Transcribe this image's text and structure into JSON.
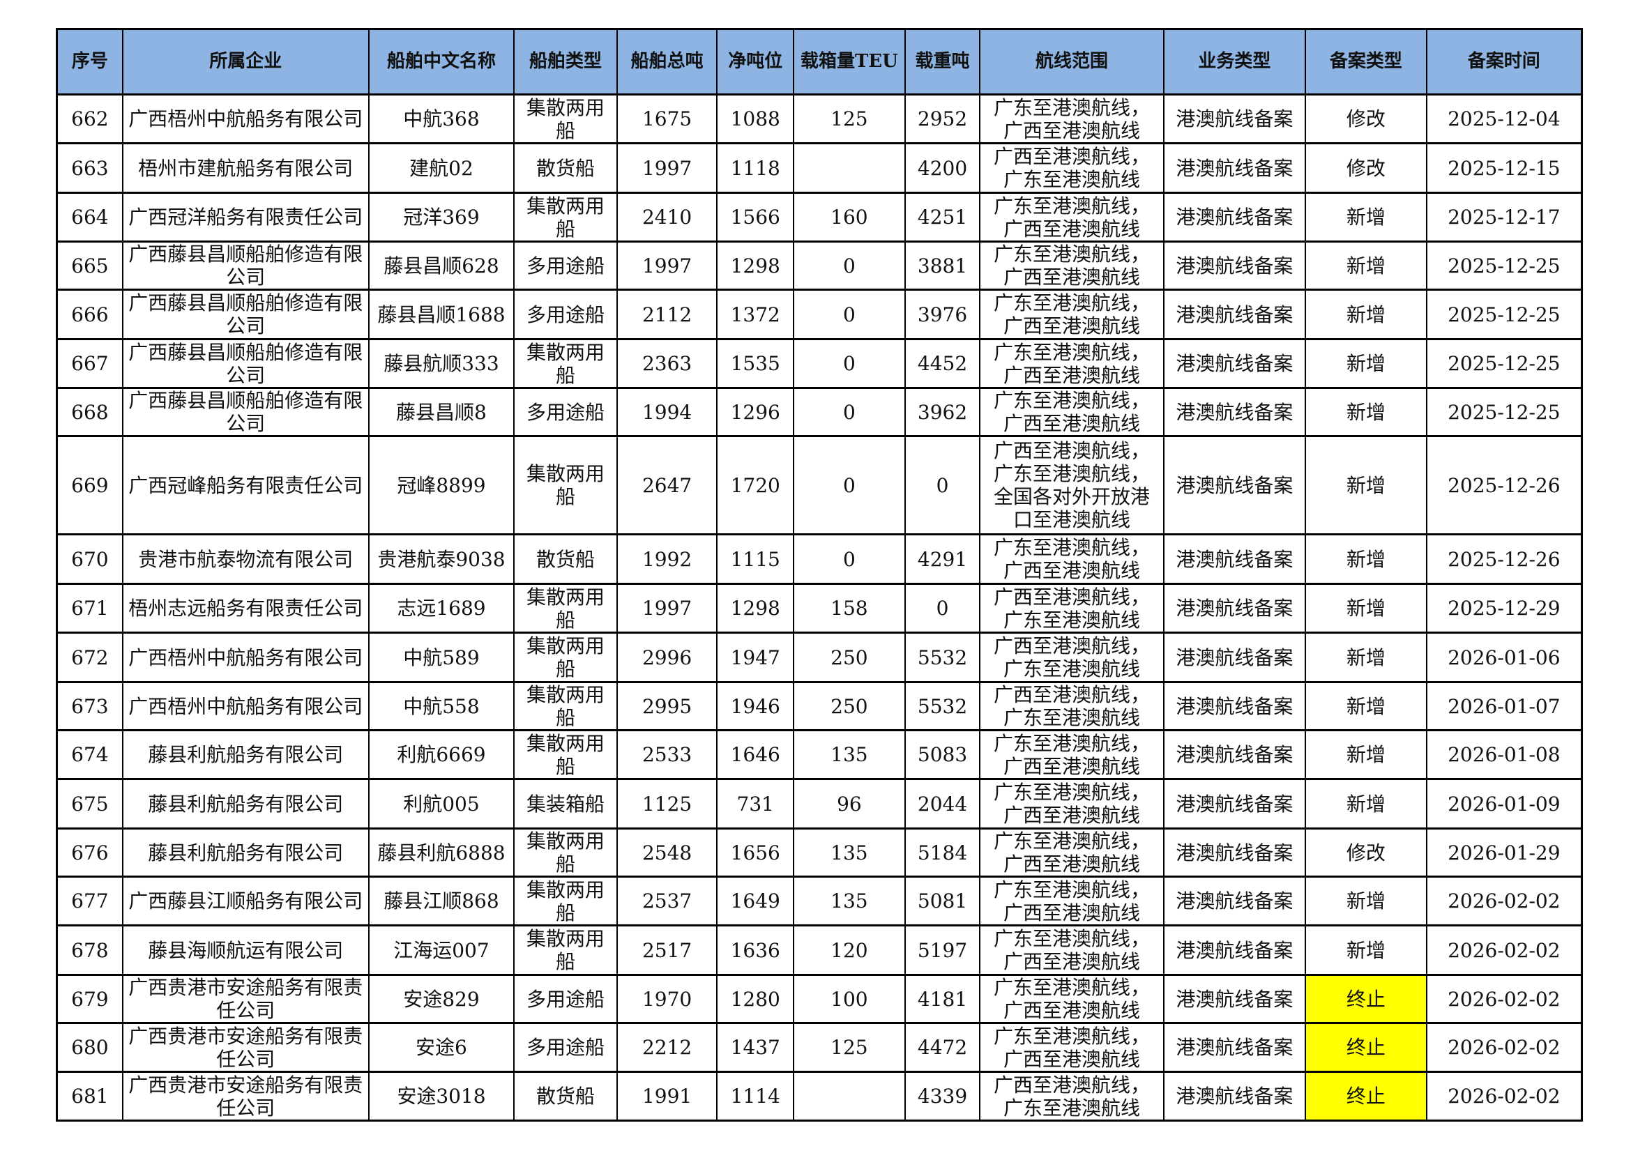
{
  "table": {
    "headers": [
      "序号",
      "所属企业",
      "船舶中文名称",
      "船舶类型",
      "船舶总吨",
      "净吨位",
      "载箱量TEU",
      "载重吨",
      "航线范围",
      "业务类型",
      "备案类型",
      "备案时间"
    ],
    "highlight_color": "#ffff00",
    "header_color": "#8db4e2",
    "rows": [
      [
        "662",
        "广西梧州中航船务有限公司",
        "中航368",
        "集散两用船",
        "1675",
        "1088",
        "125",
        "2952",
        "广东至港澳航线，广西至港澳航线",
        "港澳航线备案",
        "修改",
        "2025-12-04"
      ],
      [
        "663",
        "梧州市建航船务有限公司",
        "建航02",
        "散货船",
        "1997",
        "1118",
        "",
        "4200",
        "广西至港澳航线，广东至港澳航线",
        "港澳航线备案",
        "修改",
        "2025-12-15"
      ],
      [
        "664",
        "广西冠洋船务有限责任公司",
        "冠洋369",
        "集散两用船",
        "2410",
        "1566",
        "160",
        "4251",
        "广东至港澳航线，广西至港澳航线",
        "港澳航线备案",
        "新增",
        "2025-12-17"
      ],
      [
        "665",
        "广西藤县昌顺船舶修造有限公司",
        "藤县昌顺628",
        "多用途船",
        "1997",
        "1298",
        "0",
        "3881",
        "广东至港澳航线，广西至港澳航线",
        "港澳航线备案",
        "新增",
        "2025-12-25"
      ],
      [
        "666",
        "广西藤县昌顺船舶修造有限公司",
        "藤县昌顺1688",
        "多用途船",
        "2112",
        "1372",
        "0",
        "3976",
        "广东至港澳航线，广西至港澳航线",
        "港澳航线备案",
        "新增",
        "2025-12-25"
      ],
      [
        "667",
        "广西藤县昌顺船舶修造有限公司",
        "藤县航顺333",
        "集散两用船",
        "2363",
        "1535",
        "0",
        "4452",
        "广东至港澳航线，广西至港澳航线",
        "港澳航线备案",
        "新增",
        "2025-12-25"
      ],
      [
        "668",
        "广西藤县昌顺船舶修造有限公司",
        "藤县昌顺8",
        "多用途船",
        "1994",
        "1296",
        "0",
        "3962",
        "广东至港澳航线，广西至港澳航线",
        "港澳航线备案",
        "新增",
        "2025-12-25"
      ],
      [
        "669",
        "广西冠峰船务有限责任公司",
        "冠峰8899",
        "集散两用船",
        "2647",
        "1720",
        "0",
        "0",
        "广西至港澳航线，广东至港澳航线，全国各对外开放港口至港澳航线",
        "港澳航线备案",
        "新增",
        "2025-12-26"
      ],
      [
        "670",
        "贵港市航泰物流有限公司",
        "贵港航泰9038",
        "散货船",
        "1992",
        "1115",
        "0",
        "4291",
        "广东至港澳航线，广西至港澳航线",
        "港澳航线备案",
        "新增",
        "2025-12-26"
      ],
      [
        "671",
        "梧州志远船务有限责任公司",
        "志远1689",
        "集散两用船",
        "1997",
        "1298",
        "158",
        "0",
        "广西至港澳航线，广东至港澳航线",
        "港澳航线备案",
        "新增",
        "2025-12-29"
      ],
      [
        "672",
        "广西梧州中航船务有限公司",
        "中航589",
        "集散两用船",
        "2996",
        "1947",
        "250",
        "5532",
        "广西至港澳航线，广东至港澳航线",
        "港澳航线备案",
        "新增",
        "2026-01-06"
      ],
      [
        "673",
        "广西梧州中航船务有限公司",
        "中航558",
        "集散两用船",
        "2995",
        "1946",
        "250",
        "5532",
        "广西至港澳航线，广东至港澳航线",
        "港澳航线备案",
        "新增",
        "2026-01-07"
      ],
      [
        "674",
        "藤县利航船务有限公司",
        "利航6669",
        "集散两用船",
        "2533",
        "1646",
        "135",
        "5083",
        "广东至港澳航线，广西至港澳航线",
        "港澳航线备案",
        "新增",
        "2026-01-08"
      ],
      [
        "675",
        "藤县利航船务有限公司",
        "利航005",
        "集装箱船",
        "1125",
        "731",
        "96",
        "2044",
        "广东至港澳航线，广西至港澳航线",
        "港澳航线备案",
        "新增",
        "2026-01-09"
      ],
      [
        "676",
        "藤县利航船务有限公司",
        "藤县利航6888",
        "集散两用船",
        "2548",
        "1656",
        "135",
        "5184",
        "广东至港澳航线，广西至港澳航线",
        "港澳航线备案",
        "修改",
        "2026-01-29"
      ],
      [
        "677",
        "广西藤县江顺船务有限公司",
        "藤县江顺868",
        "集散两用船",
        "2537",
        "1649",
        "135",
        "5081",
        "广东至港澳航线，广西至港澳航线",
        "港澳航线备案",
        "新增",
        "2026-02-02"
      ],
      [
        "678",
        "藤县海顺航运有限公司",
        "江海运007",
        "集散两用船",
        "2517",
        "1636",
        "120",
        "5197",
        "广东至港澳航线，广西至港澳航线",
        "港澳航线备案",
        "新增",
        "2026-02-02"
      ],
      [
        "679",
        "广西贵港市安途船务有限责任公司",
        "安途829",
        "多用途船",
        "1970",
        "1280",
        "100",
        "4181",
        "广东至港澳航线，广西至港澳航线",
        "港澳航线备案",
        "终止",
        "2026-02-02"
      ],
      [
        "680",
        "广西贵港市安途船务有限责任公司",
        "安途6",
        "多用途船",
        "2212",
        "1437",
        "125",
        "4472",
        "广东至港澳航线，广西至港澳航线",
        "港澳航线备案",
        "终止",
        "2026-02-02"
      ],
      [
        "681",
        "广西贵港市安途船务有限责任公司",
        "安途3018",
        "散货船",
        "1991",
        "1114",
        "",
        "4339",
        "广西至港澳航线，广东至港澳航线",
        "港澳航线备案",
        "终止",
        "2026-02-02"
      ]
    ]
  }
}
